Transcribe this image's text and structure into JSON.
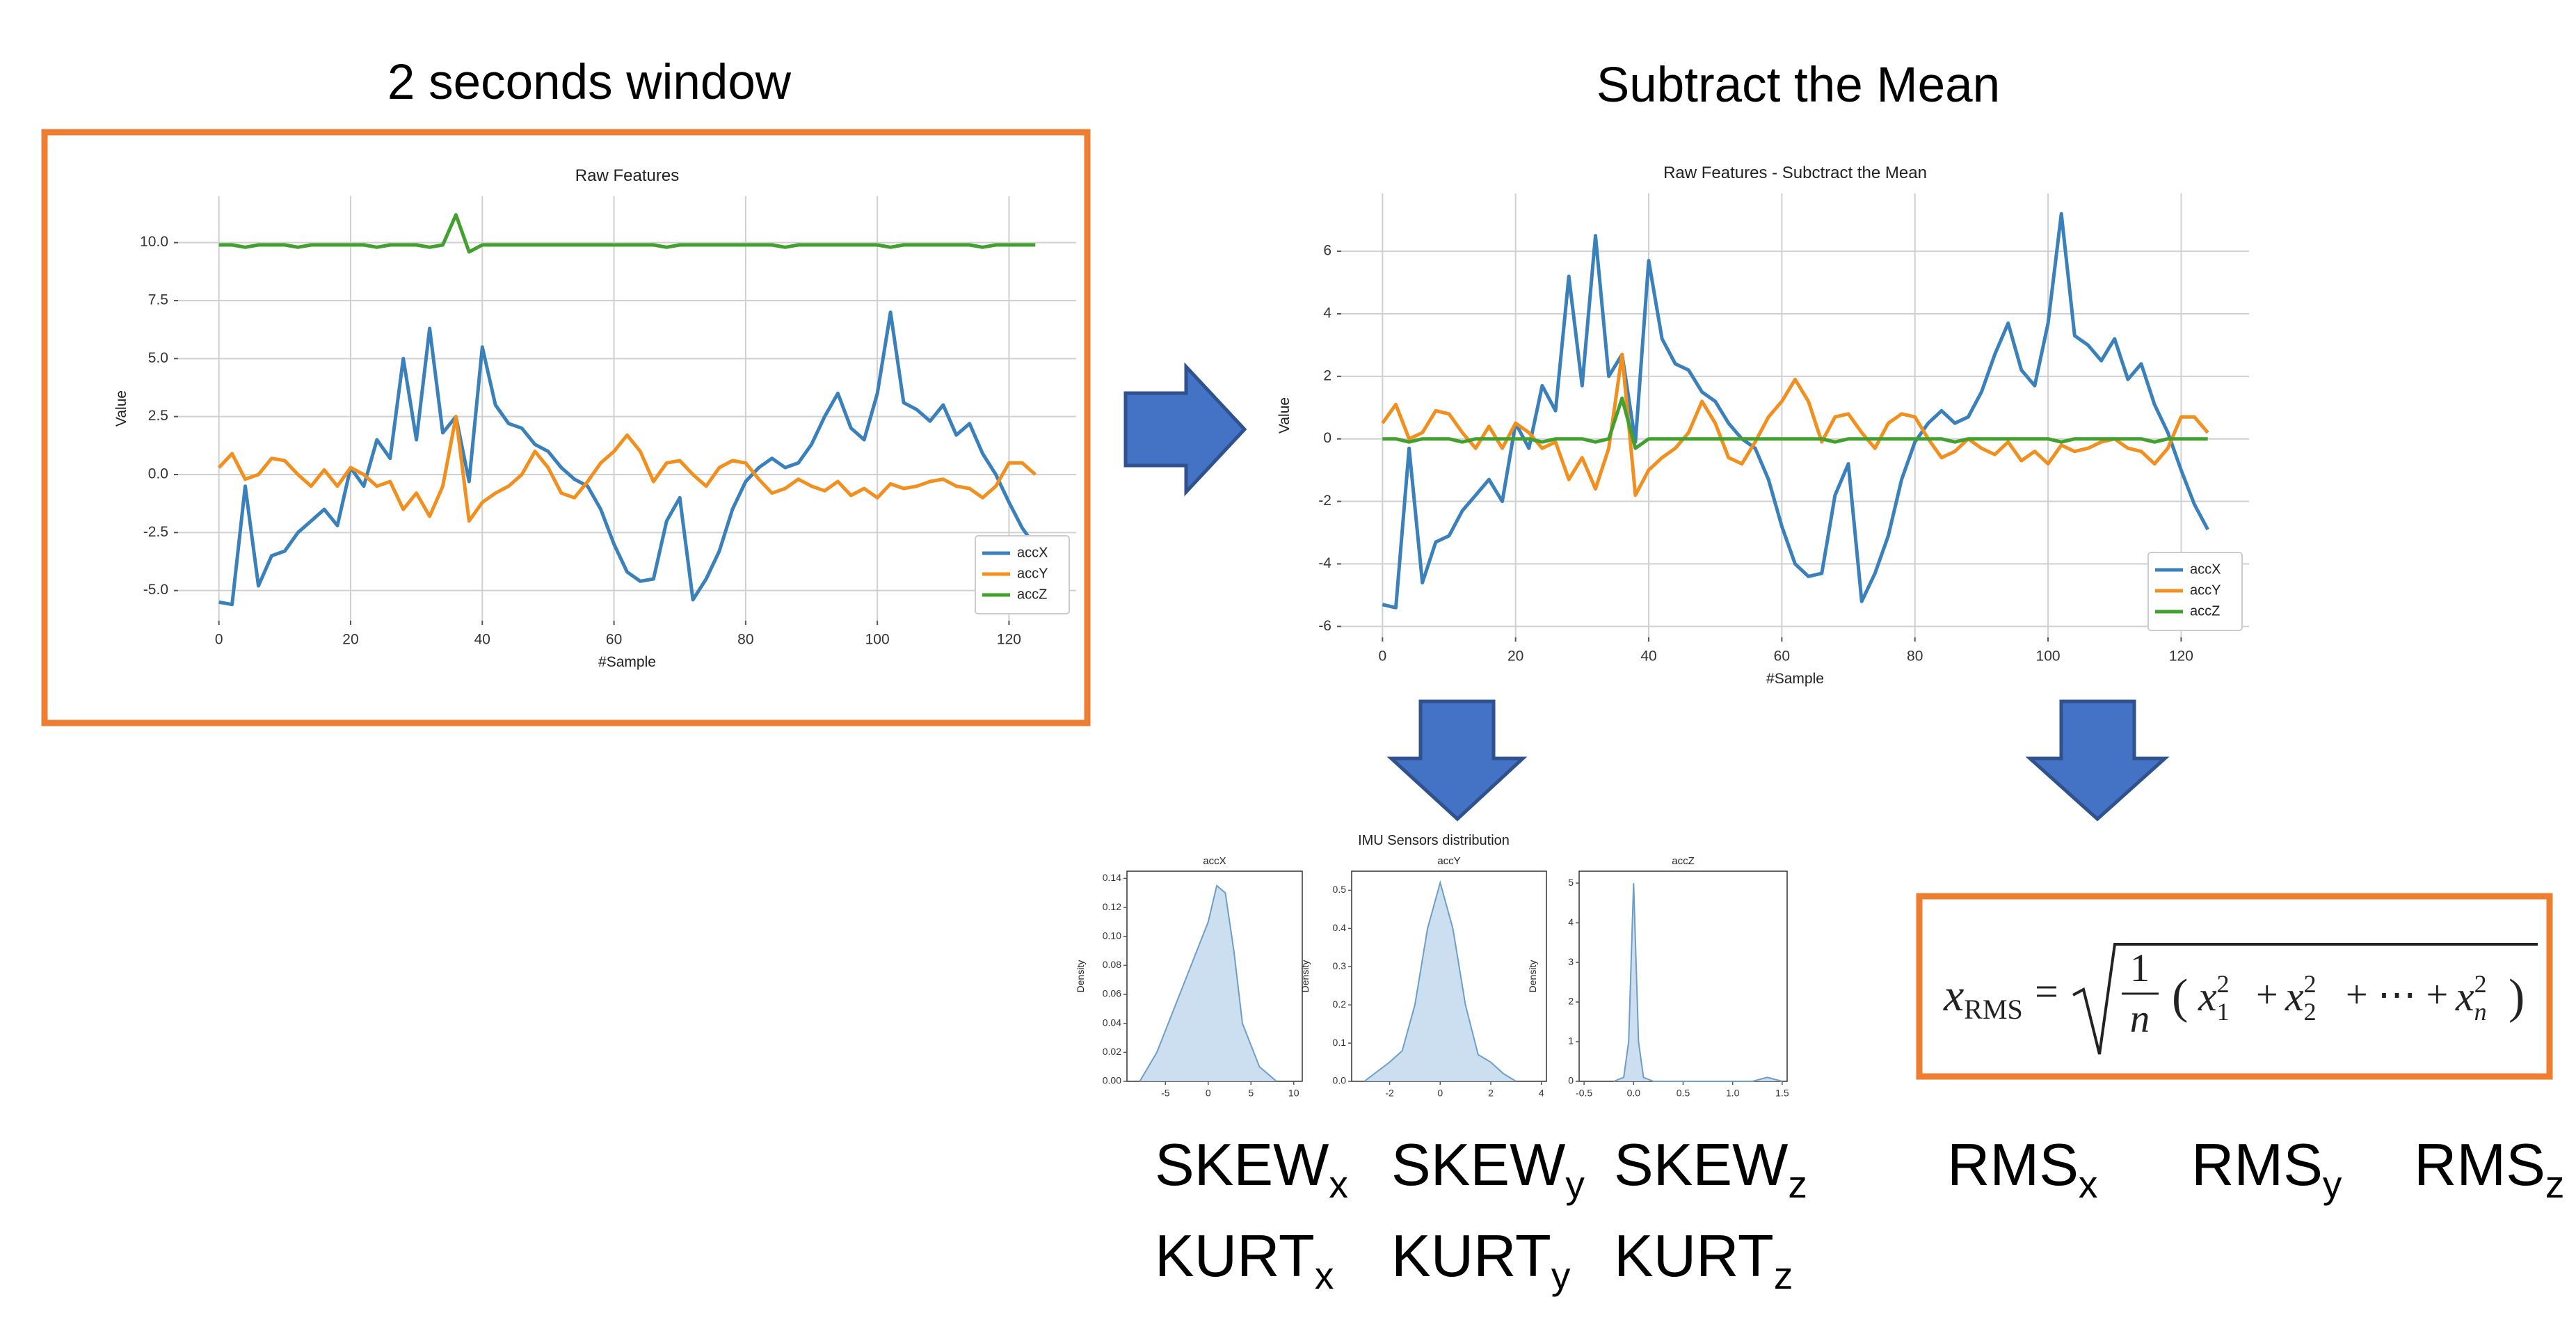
{
  "figure_titles": {
    "window": "2 seconds window",
    "subtract": "Subtract the Mean",
    "distribution": "IMU Sensors distribution"
  },
  "features": {
    "skew": [
      {
        "base": "SKEW",
        "sub": "x"
      },
      {
        "base": "SKEW",
        "sub": "y"
      },
      {
        "base": "SKEW",
        "sub": "z"
      }
    ],
    "kurt": [
      {
        "base": "KURT",
        "sub": "x"
      },
      {
        "base": "KURT",
        "sub": "y"
      },
      {
        "base": "KURT",
        "sub": "z"
      }
    ],
    "rms": [
      {
        "base": "RMS",
        "sub": "x"
      },
      {
        "base": "RMS",
        "sub": "y"
      },
      {
        "base": "RMS",
        "sub": "z"
      }
    ]
  },
  "formula": {
    "lhs": "x",
    "lhs_sub": "RMS",
    "eq": "=",
    "num": "1",
    "den": "n",
    "open": "(",
    "close": ")",
    "terms": [
      {
        "base": "x",
        "sub": "1",
        "sup": "2"
      },
      {
        "base": "x",
        "sub": "2",
        "sup": "2"
      },
      {
        "base": "x",
        "sub": "n",
        "sup": "2"
      }
    ],
    "ops": [
      "+",
      "+ ⋯ +"
    ]
  },
  "chart_data": [
    {
      "type": "line",
      "title": "Raw Features",
      "xlabel": "#Sample",
      "ylabel": "Value",
      "grid": true,
      "legend": "lower right",
      "x": [
        0,
        2,
        4,
        6,
        8,
        10,
        12,
        14,
        16,
        18,
        20,
        22,
        24,
        26,
        28,
        30,
        32,
        34,
        36,
        38,
        40,
        42,
        44,
        46,
        48,
        50,
        52,
        54,
        56,
        58,
        60,
        62,
        64,
        66,
        68,
        70,
        72,
        74,
        76,
        78,
        80,
        82,
        84,
        86,
        88,
        90,
        92,
        94,
        96,
        98,
        100,
        102,
        104,
        106,
        108,
        110,
        112,
        114,
        116,
        118,
        120,
        122,
        124
      ],
      "xlim": [
        -6.2,
        130.2
      ],
      "xticks": [
        0,
        20,
        40,
        60,
        80,
        100,
        120
      ],
      "ylim": [
        -6.3,
        12.0
      ],
      "yticks": [
        {
          "value": -5,
          "label": "-5.0"
        },
        -2.5,
        {
          "value": 0,
          "label": "0.0"
        },
        2.5,
        {
          "value": 5,
          "label": "5.0"
        },
        7.5,
        {
          "value": 10,
          "label": "10.0"
        }
      ],
      "series": [
        {
          "name": "accX",
          "color": "#3a80bb",
          "values": [
            -5.5,
            -5.6,
            -0.5,
            -4.8,
            -3.5,
            -3.3,
            -2.5,
            -2.0,
            -1.5,
            -2.2,
            0.3,
            -0.5,
            1.5,
            0.7,
            5.0,
            1.5,
            6.3,
            1.8,
            2.5,
            -0.3,
            5.5,
            3.0,
            2.2,
            2.0,
            1.3,
            1.0,
            0.3,
            -0.2,
            -0.5,
            -1.5,
            -3.0,
            -4.2,
            -4.6,
            -4.5,
            -2.0,
            -1.0,
            -5.4,
            -4.5,
            -3.3,
            -1.5,
            -0.3,
            0.3,
            0.7,
            0.3,
            0.5,
            1.3,
            2.5,
            3.5,
            2.0,
            1.5,
            3.5,
            7.0,
            3.1,
            2.8,
            2.3,
            3.0,
            1.7,
            2.2,
            0.9,
            0.0,
            -1.2,
            -2.3,
            -3.1
          ]
        },
        {
          "name": "accY",
          "color": "#f18f1f",
          "values": [
            0.3,
            0.9,
            -0.2,
            0.0,
            0.7,
            0.6,
            0.0,
            -0.5,
            0.2,
            -0.5,
            0.3,
            0.0,
            -0.5,
            -0.3,
            -1.5,
            -0.8,
            -1.8,
            -0.5,
            2.5,
            -2.0,
            -1.2,
            -0.8,
            -0.5,
            0.0,
            1.0,
            0.3,
            -0.8,
            -1.0,
            -0.3,
            0.5,
            1.0,
            1.7,
            1.0,
            -0.3,
            0.5,
            0.6,
            0.0,
            -0.5,
            0.3,
            0.6,
            0.5,
            -0.2,
            -0.8,
            -0.6,
            -0.2,
            -0.5,
            -0.7,
            -0.3,
            -0.9,
            -0.6,
            -1.0,
            -0.4,
            -0.6,
            -0.5,
            -0.3,
            -0.2,
            -0.5,
            -0.6,
            -1.0,
            -0.5,
            0.5,
            0.5,
            0.0
          ]
        },
        {
          "name": "accZ",
          "color": "#42a02e",
          "values": [
            9.9,
            9.9,
            9.8,
            9.9,
            9.9,
            9.9,
            9.8,
            9.9,
            9.9,
            9.9,
            9.9,
            9.9,
            9.8,
            9.9,
            9.9,
            9.9,
            9.8,
            9.9,
            11.2,
            9.6,
            9.9,
            9.9,
            9.9,
            9.9,
            9.9,
            9.9,
            9.9,
            9.9,
            9.9,
            9.9,
            9.9,
            9.9,
            9.9,
            9.9,
            9.8,
            9.9,
            9.9,
            9.9,
            9.9,
            9.9,
            9.9,
            9.9,
            9.9,
            9.8,
            9.9,
            9.9,
            9.9,
            9.9,
            9.9,
            9.9,
            9.9,
            9.8,
            9.9,
            9.9,
            9.9,
            9.9,
            9.9,
            9.9,
            9.8,
            9.9,
            9.9,
            9.9,
            9.9
          ]
        }
      ]
    },
    {
      "type": "line",
      "title": "Raw Features - Subctract the Mean",
      "xlabel": "#Sample",
      "ylabel": "Value",
      "grid": true,
      "legend": "lower right",
      "x": [
        0,
        2,
        4,
        6,
        8,
        10,
        12,
        14,
        16,
        18,
        20,
        22,
        24,
        26,
        28,
        30,
        32,
        34,
        36,
        38,
        40,
        42,
        44,
        46,
        48,
        50,
        52,
        54,
        56,
        58,
        60,
        62,
        64,
        66,
        68,
        70,
        72,
        74,
        76,
        78,
        80,
        82,
        84,
        86,
        88,
        90,
        92,
        94,
        96,
        98,
        100,
        102,
        104,
        106,
        108,
        110,
        112,
        114,
        116,
        118,
        120,
        122,
        124
      ],
      "xlim": [
        -6.2,
        130.2
      ],
      "xticks": [
        0,
        20,
        40,
        60,
        80,
        100,
        120
      ],
      "ylim": [
        -6.35,
        7.85
      ],
      "yticks": [
        -6,
        -4,
        -2,
        0,
        2,
        4,
        6
      ],
      "series": [
        {
          "name": "accX",
          "color": "#3a80bb",
          "values": [
            -5.3,
            -5.4,
            -0.3,
            -4.6,
            -3.3,
            -3.1,
            -2.3,
            -1.8,
            -1.3,
            -2.0,
            0.5,
            -0.3,
            1.7,
            0.9,
            5.2,
            1.7,
            6.5,
            2.0,
            2.7,
            -0.1,
            5.7,
            3.2,
            2.4,
            2.2,
            1.5,
            1.2,
            0.5,
            0.0,
            -0.3,
            -1.3,
            -2.8,
            -4.0,
            -4.4,
            -4.3,
            -1.8,
            -0.8,
            -5.2,
            -4.3,
            -3.1,
            -1.3,
            -0.1,
            0.5,
            0.9,
            0.5,
            0.7,
            1.5,
            2.7,
            3.7,
            2.2,
            1.7,
            3.7,
            7.2,
            3.3,
            3.0,
            2.5,
            3.2,
            1.9,
            2.4,
            1.1,
            0.2,
            -1.0,
            -2.1,
            -2.9
          ]
        },
        {
          "name": "accY",
          "color": "#f18f1f",
          "values": [
            0.5,
            1.1,
            0.0,
            0.2,
            0.9,
            0.8,
            0.2,
            -0.3,
            0.4,
            -0.3,
            0.5,
            0.2,
            -0.3,
            -0.1,
            -1.3,
            -0.6,
            -1.6,
            -0.3,
            2.7,
            -1.8,
            -1.0,
            -0.6,
            -0.3,
            0.2,
            1.2,
            0.5,
            -0.6,
            -0.8,
            -0.1,
            0.7,
            1.2,
            1.9,
            1.2,
            -0.1,
            0.7,
            0.8,
            0.2,
            -0.3,
            0.5,
            0.8,
            0.7,
            0.0,
            -0.6,
            -0.4,
            0.0,
            -0.3,
            -0.5,
            -0.1,
            -0.7,
            -0.4,
            -0.8,
            -0.2,
            -0.4,
            -0.3,
            -0.1,
            0.0,
            -0.3,
            -0.4,
            -0.8,
            -0.3,
            0.7,
            0.7,
            0.2
          ]
        },
        {
          "name": "accZ",
          "color": "#42a02e",
          "values": [
            0.0,
            0.0,
            -0.1,
            0.0,
            0.0,
            0.0,
            -0.1,
            0.0,
            0.0,
            0.0,
            0.0,
            0.0,
            -0.1,
            0.0,
            0.0,
            0.0,
            -0.1,
            0.0,
            1.3,
            -0.3,
            0.0,
            0.0,
            0.0,
            0.0,
            0.0,
            0.0,
            0.0,
            0.0,
            0.0,
            0.0,
            0.0,
            0.0,
            0.0,
            0.0,
            -0.1,
            0.0,
            0.0,
            0.0,
            0.0,
            0.0,
            0.0,
            0.0,
            0.0,
            -0.1,
            0.0,
            0.0,
            0.0,
            0.0,
            0.0,
            0.0,
            0.0,
            -0.1,
            0.0,
            0.0,
            0.0,
            0.0,
            0.0,
            0.0,
            -0.1,
            0.0,
            0.0,
            0.0,
            0.0
          ]
        }
      ]
    },
    {
      "type": "area",
      "title": "accX",
      "ylabel": "Density",
      "color": "#c6dbee",
      "x": [
        -8,
        -6,
        -4,
        -2,
        0,
        1,
        2,
        3,
        4,
        6,
        8
      ],
      "values": [
        0.0,
        0.02,
        0.05,
        0.08,
        0.11,
        0.135,
        0.13,
        0.09,
        0.04,
        0.01,
        0.0
      ],
      "xlim": [
        -9.5,
        11
      ],
      "xticks": [
        -5,
        0,
        5,
        10
      ],
      "ylim": [
        0,
        0.145
      ],
      "yticks": [
        {
          "value": 0,
          "label": "0.00"
        },
        0.02,
        0.04,
        0.06,
        0.08,
        {
          "value": 0.1,
          "label": "0.10"
        },
        0.12,
        0.14
      ]
    },
    {
      "type": "area",
      "title": "accY",
      "ylabel": "Density",
      "color": "#c6dbee",
      "x": [
        -3,
        -2,
        -1.5,
        -1,
        -0.5,
        0,
        0.5,
        1,
        1.5,
        2,
        2.5,
        3
      ],
      "values": [
        0.0,
        0.05,
        0.08,
        0.2,
        0.4,
        0.52,
        0.4,
        0.2,
        0.07,
        0.05,
        0.02,
        0.0
      ],
      "xlim": [
        -3.5,
        4.2
      ],
      "xticks": [
        -2,
        0,
        2,
        4
      ],
      "ylim": [
        0,
        0.55
      ],
      "yticks": [
        {
          "value": 0,
          "label": "0.0"
        },
        0.1,
        0.2,
        0.3,
        0.4,
        0.5
      ]
    },
    {
      "type": "area",
      "title": "accZ",
      "ylabel": "Density",
      "color": "#c6dbee",
      "x": [
        -0.2,
        -0.1,
        -0.05,
        0,
        0.05,
        0.1,
        0.2,
        1.2,
        1.35,
        1.5
      ],
      "values": [
        0.0,
        0.1,
        1.0,
        5.0,
        1.0,
        0.1,
        0.0,
        0.0,
        0.1,
        0.0
      ],
      "xlim": [
        -0.55,
        1.55
      ],
      "xticks": [
        -0.5,
        {
          "value": 0,
          "label": "0.0"
        },
        0.5,
        {
          "value": 1,
          "label": "1.0"
        },
        1.5
      ],
      "ylim": [
        0,
        5.3
      ],
      "yticks": [
        0,
        1,
        2,
        3,
        4,
        5
      ]
    }
  ]
}
